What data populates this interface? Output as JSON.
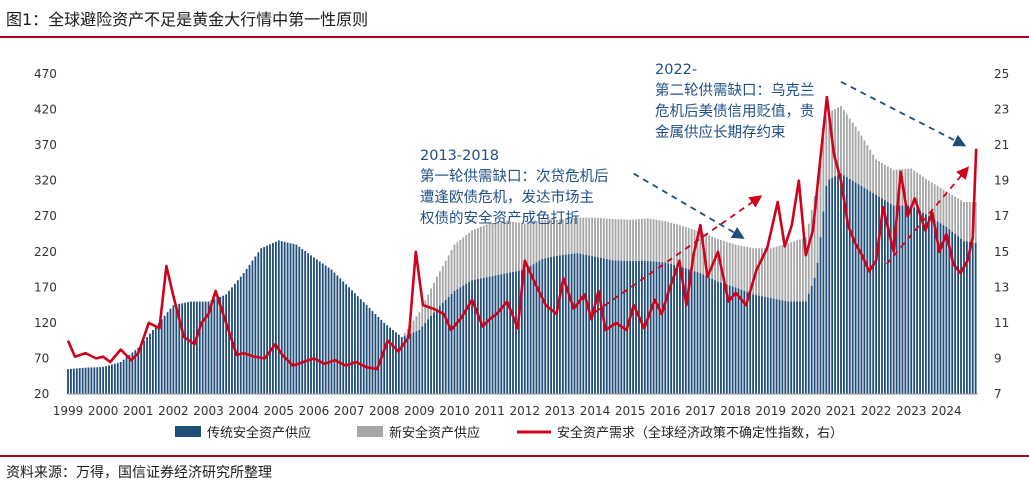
{
  "title": "图1：全球避险资产不足是黄金大行情中第一性原则",
  "source": "资料来源：万得，国信证券经济研究所整理",
  "chart_data": {
    "type": "bar",
    "x_start": 1999,
    "x_end": 2024.9,
    "x_ticks": [
      "1999",
      "2000",
      "2001",
      "2002",
      "2003",
      "2004",
      "2005",
      "2006",
      "2007",
      "2008",
      "2009",
      "2010",
      "2011",
      "2012",
      "2013",
      "2014",
      "2015",
      "2016",
      "2017",
      "2018",
      "2019",
      "2020",
      "2021",
      "2022",
      "2023",
      "2024"
    ],
    "y_left": {
      "ylim": [
        20,
        470
      ],
      "ticks": [
        "20",
        "70",
        "120",
        "170",
        "220",
        "270",
        "320",
        "370",
        "420",
        "470"
      ]
    },
    "y_right": {
      "ylim": [
        7,
        25
      ],
      "ticks": [
        "7",
        "9",
        "11",
        "13",
        "15",
        "17",
        "19",
        "21",
        "23",
        "25"
      ]
    },
    "colors": {
      "traditional": "#1f4e79",
      "new": "#a6a6a6",
      "demand": "#d0021b",
      "arrow_up": "#d0021b",
      "arrow_down": "#1f4e79"
    },
    "annotations": [
      {
        "lines": [
          "2013-2018",
          "第一轮供需缺口：次贷危机后",
          "遭逢欧债危机，发达市场主",
          "权债的安全资产成色打折"
        ]
      },
      {
        "lines": [
          "2022-",
          "第二轮供需缺口：乌克兰",
          "危机后美债信用贬值，贵",
          "金属供应长期存约束"
        ]
      }
    ],
    "legend": [
      "传统安全资产供应",
      "新安全资产供应",
      "安全资产需求（全球经济政策不确定性指数，右）"
    ],
    "series": [
      {
        "name": "传统安全资产供应",
        "axis": "left",
        "points": [
          [
            1999.0,
            55
          ],
          [
            1999.5,
            57
          ],
          [
            2000.0,
            58
          ],
          [
            2000.5,
            65
          ],
          [
            2001.0,
            85
          ],
          [
            2001.5,
            115
          ],
          [
            2002.0,
            145
          ],
          [
            2002.5,
            150
          ],
          [
            2003.0,
            150
          ],
          [
            2003.5,
            160
          ],
          [
            2004.0,
            190
          ],
          [
            2004.5,
            225
          ],
          [
            2005.0,
            236
          ],
          [
            2005.5,
            230
          ],
          [
            2006.0,
            212
          ],
          [
            2006.5,
            195
          ],
          [
            2007.0,
            170
          ],
          [
            2007.5,
            145
          ],
          [
            2008.0,
            120
          ],
          [
            2008.5,
            100
          ],
          [
            2009.0,
            110
          ],
          [
            2009.5,
            140
          ],
          [
            2010.0,
            165
          ],
          [
            2010.5,
            180
          ],
          [
            2011.0,
            185
          ],
          [
            2011.5,
            190
          ],
          [
            2012.0,
            195
          ],
          [
            2012.5,
            210
          ],
          [
            2013.0,
            215
          ],
          [
            2013.5,
            218
          ],
          [
            2014.0,
            213
          ],
          [
            2014.5,
            208
          ],
          [
            2015.0,
            207
          ],
          [
            2015.5,
            207
          ],
          [
            2016.0,
            205
          ],
          [
            2016.5,
            198
          ],
          [
            2017.0,
            190
          ],
          [
            2017.5,
            178
          ],
          [
            2018.0,
            170
          ],
          [
            2018.5,
            160
          ],
          [
            2019.0,
            155
          ],
          [
            2019.5,
            150
          ],
          [
            2020.0,
            150
          ],
          [
            2020.3,
            190
          ],
          [
            2020.6,
            320
          ],
          [
            2021.0,
            330
          ],
          [
            2021.5,
            315
          ],
          [
            2022.0,
            300
          ],
          [
            2022.5,
            285
          ],
          [
            2023.0,
            285
          ],
          [
            2023.5,
            270
          ],
          [
            2024.0,
            255
          ],
          [
            2024.5,
            235
          ],
          [
            2024.9,
            232
          ]
        ]
      },
      {
        "name": "新安全资产供应",
        "axis": "left",
        "points": [
          [
            1999.0,
            0
          ],
          [
            2008.5,
            0
          ],
          [
            2009.0,
            25
          ],
          [
            2009.5,
            45
          ],
          [
            2010.0,
            65
          ],
          [
            2010.5,
            70
          ],
          [
            2011.0,
            75
          ],
          [
            2011.5,
            73
          ],
          [
            2012.0,
            65
          ],
          [
            2012.5,
            55
          ],
          [
            2013.0,
            50
          ],
          [
            2013.5,
            50
          ],
          [
            2014.0,
            55
          ],
          [
            2014.5,
            58
          ],
          [
            2015.0,
            58
          ],
          [
            2015.5,
            60
          ],
          [
            2016.0,
            58
          ],
          [
            2016.5,
            58
          ],
          [
            2017.0,
            58
          ],
          [
            2017.5,
            60
          ],
          [
            2018.0,
            60
          ],
          [
            2018.5,
            65
          ],
          [
            2019.0,
            70
          ],
          [
            2019.5,
            82
          ],
          [
            2020.0,
            90
          ],
          [
            2020.3,
            120
          ],
          [
            2020.6,
            95
          ],
          [
            2021.0,
            95
          ],
          [
            2021.5,
            75
          ],
          [
            2022.0,
            50
          ],
          [
            2022.5,
            50
          ],
          [
            2023.0,
            52
          ],
          [
            2023.5,
            50
          ],
          [
            2024.0,
            50
          ],
          [
            2024.5,
            55
          ],
          [
            2024.9,
            58
          ]
        ]
      },
      {
        "name": "安全资产需求（全球经济政策不确定性指数，右）",
        "axis": "right",
        "points": [
          [
            1999.0,
            10.0
          ],
          [
            1999.2,
            9.1
          ],
          [
            1999.5,
            9.3
          ],
          [
            1999.8,
            9.0
          ],
          [
            2000.0,
            9.1
          ],
          [
            2000.2,
            8.8
          ],
          [
            2000.5,
            9.5
          ],
          [
            2000.8,
            8.9
          ],
          [
            2001.0,
            9.3
          ],
          [
            2001.3,
            11.0
          ],
          [
            2001.6,
            10.7
          ],
          [
            2001.8,
            14.2
          ],
          [
            2002.0,
            12.5
          ],
          [
            2002.3,
            10.2
          ],
          [
            2002.6,
            9.8
          ],
          [
            2002.8,
            11.0
          ],
          [
            2003.0,
            11.5
          ],
          [
            2003.2,
            12.8
          ],
          [
            2003.5,
            11.0
          ],
          [
            2003.8,
            9.2
          ],
          [
            2004.0,
            9.3
          ],
          [
            2004.3,
            9.1
          ],
          [
            2004.6,
            9.0
          ],
          [
            2004.9,
            9.8
          ],
          [
            2005.1,
            9.2
          ],
          [
            2005.4,
            8.6
          ],
          [
            2005.7,
            8.8
          ],
          [
            2006.0,
            9.0
          ],
          [
            2006.3,
            8.7
          ],
          [
            2006.6,
            8.9
          ],
          [
            2006.9,
            8.6
          ],
          [
            2007.2,
            8.8
          ],
          [
            2007.5,
            8.5
          ],
          [
            2007.8,
            8.4
          ],
          [
            2008.1,
            10.0
          ],
          [
            2008.4,
            9.4
          ],
          [
            2008.7,
            10.2
          ],
          [
            2008.9,
            15.0
          ],
          [
            2009.1,
            12.0
          ],
          [
            2009.4,
            11.8
          ],
          [
            2009.7,
            11.5
          ],
          [
            2009.9,
            10.6
          ],
          [
            2010.2,
            11.3
          ],
          [
            2010.5,
            12.3
          ],
          [
            2010.8,
            10.8
          ],
          [
            2011.0,
            11.2
          ],
          [
            2011.2,
            11.5
          ],
          [
            2011.5,
            12.2
          ],
          [
            2011.8,
            10.7
          ],
          [
            2012.0,
            14.5
          ],
          [
            2012.3,
            13.2
          ],
          [
            2012.6,
            12.0
          ],
          [
            2012.9,
            11.5
          ],
          [
            2013.1,
            13.5
          ],
          [
            2013.4,
            11.8
          ],
          [
            2013.7,
            12.6
          ],
          [
            2013.9,
            11.2
          ],
          [
            2014.1,
            12.8
          ],
          [
            2014.3,
            10.6
          ],
          [
            2014.6,
            11.0
          ],
          [
            2014.9,
            10.6
          ],
          [
            2015.1,
            12.0
          ],
          [
            2015.4,
            10.7
          ],
          [
            2015.7,
            12.3
          ],
          [
            2015.9,
            11.5
          ],
          [
            2016.1,
            12.8
          ],
          [
            2016.4,
            14.5
          ],
          [
            2016.6,
            12.0
          ],
          [
            2016.8,
            14.8
          ],
          [
            2017.0,
            16.5
          ],
          [
            2017.2,
            13.6
          ],
          [
            2017.5,
            15.0
          ],
          [
            2017.8,
            12.2
          ],
          [
            2018.0,
            12.7
          ],
          [
            2018.3,
            12.0
          ],
          [
            2018.6,
            14.0
          ],
          [
            2018.9,
            15.2
          ],
          [
            2019.2,
            17.8
          ],
          [
            2019.4,
            15.3
          ],
          [
            2019.6,
            16.5
          ],
          [
            2019.8,
            19.0
          ],
          [
            2020.0,
            14.8
          ],
          [
            2020.2,
            16.2
          ],
          [
            2020.4,
            20.0
          ],
          [
            2020.6,
            23.7
          ],
          [
            2020.8,
            20.5
          ],
          [
            2021.0,
            19.0
          ],
          [
            2021.2,
            16.5
          ],
          [
            2021.4,
            15.5
          ],
          [
            2021.6,
            14.8
          ],
          [
            2021.8,
            13.9
          ],
          [
            2022.0,
            14.5
          ],
          [
            2022.2,
            17.5
          ],
          [
            2022.5,
            15.0
          ],
          [
            2022.7,
            19.5
          ],
          [
            2022.9,
            17.0
          ],
          [
            2023.1,
            18.0
          ],
          [
            2023.4,
            16.2
          ],
          [
            2023.6,
            17.2
          ],
          [
            2023.8,
            15.0
          ],
          [
            2024.0,
            16.0
          ],
          [
            2024.2,
            14.3
          ],
          [
            2024.4,
            13.8
          ],
          [
            2024.6,
            14.5
          ],
          [
            2024.75,
            15.8
          ],
          [
            2024.85,
            20.8
          ]
        ]
      }
    ]
  }
}
